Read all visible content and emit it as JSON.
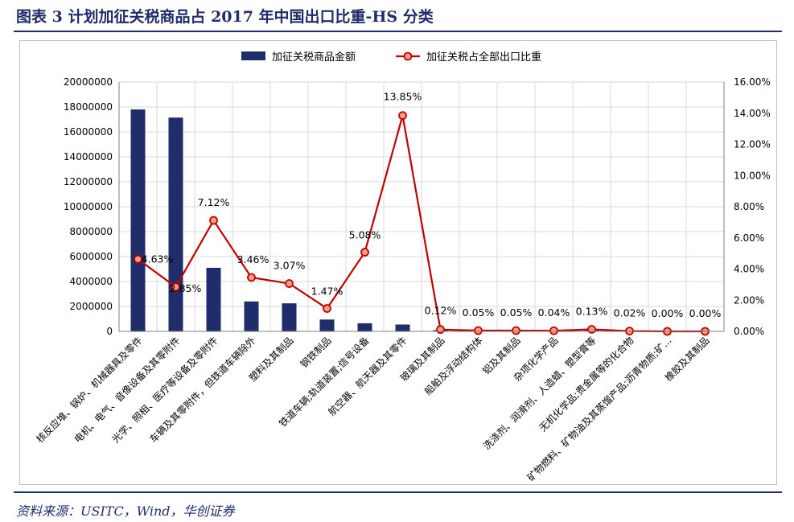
{
  "header": {
    "title": "图表 3   计划加征关税商品占 2017 年中国出口比重-HS 分类"
  },
  "source": "资料来源：USITC，Wind，华创证券",
  "colors": {
    "bar": "#1f2d6b",
    "line": "#c00000",
    "marker_fill": "#f4a080",
    "grid": "#d9d9d9"
  },
  "chart_data": {
    "type": "bar",
    "legend": [
      "加征关税商品金额",
      "加征关税占全部出口比重"
    ],
    "legend_position": "top",
    "grid": true,
    "categories": [
      "核反应堆、锅炉、机械器具及零件",
      "电机、电气、音像设备及其零附件",
      "光学、照相、医疗等设备及零附件",
      "车辆及其零附件，但铁道车辆除外",
      "塑料及其制品",
      "钢铁制品",
      "铁道车辆;轨道装置;信号设备",
      "航空器、航天器及其零件",
      "玻璃及其制品",
      "船舶及浮动结构体",
      "铝及其制品",
      "杂项化学产品",
      "洗涤剂、润滑剂、人造蜡、塑型膏等",
      "无机化学品;贵金属等的化合物",
      "矿物燃料、矿物油及其蒸馏产品;沥青物质;矿...",
      "橡胶及其制品"
    ],
    "series": [
      {
        "name": "加征关税商品金额",
        "axis": "left",
        "type": "bar",
        "values": [
          17800000,
          17150000,
          5100000,
          2400000,
          2250000,
          950000,
          650000,
          550000,
          100000,
          40000,
          40000,
          30000,
          60000,
          15000,
          5000,
          3000
        ]
      },
      {
        "name": "加征关税占全部出口比重",
        "axis": "right",
        "type": "line",
        "values": [
          4.63,
          2.85,
          7.12,
          3.46,
          3.07,
          1.47,
          5.08,
          13.85,
          0.12,
          0.05,
          0.05,
          0.04,
          0.13,
          0.02,
          0.0,
          0.0
        ],
        "labels": [
          "4.63%",
          "2.85%",
          "7.12%",
          "3.46%",
          "3.07%",
          "1.47%",
          "5.08%",
          "13.85%",
          "0.12%",
          "0.05%",
          "0.05%",
          "0.04%",
          "0.13%",
          "0.02%",
          "0.00%",
          "0.00%"
        ]
      }
    ],
    "y_left": {
      "min": 0,
      "max": 20000000,
      "step": 2000000
    },
    "y_right": {
      "min": 0,
      "max": 16,
      "step": 2,
      "unit": "%"
    },
    "y_left_ticks": [
      "0",
      "2000000",
      "4000000",
      "6000000",
      "8000000",
      "10000000",
      "12000000",
      "14000000",
      "16000000",
      "18000000",
      "20000000"
    ],
    "y_right_ticks": [
      "0.00%",
      "2.00%",
      "4.00%",
      "6.00%",
      "8.00%",
      "10.00%",
      "12.00%",
      "14.00%",
      "16.00%"
    ]
  }
}
